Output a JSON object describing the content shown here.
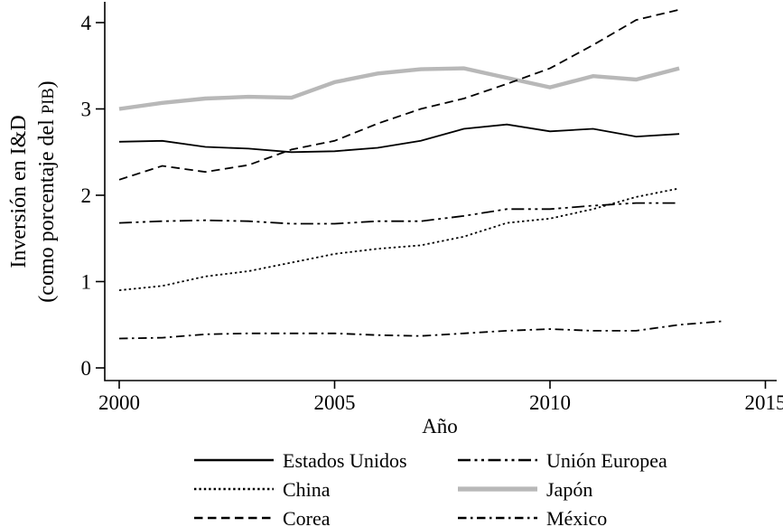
{
  "chart_data": {
    "type": "line",
    "title": "",
    "xlabel": "Año",
    "ylabel": "Inversión en I&D (como porcentaje del PIB)",
    "ylabel_lines": {
      "line1": "Inversión en I&D",
      "line2_pre": "(como porcentaje del ",
      "line2_smallcaps": "PIB",
      "line2_post": ")"
    },
    "x_ticks": [
      "2000",
      "2005",
      "2010",
      "2015"
    ],
    "y_ticks": [
      "0",
      "1",
      "2",
      "3",
      "4"
    ],
    "xlim": [
      1999.7,
      2015.3
    ],
    "ylim": [
      0,
      4.35
    ],
    "grid": false,
    "legend_position": "bottom, two columns",
    "background_color": "#ffffff",
    "axis_color": "#000000",
    "series": [
      {
        "name": "Estados Unidos",
        "key": "estados-unidos",
        "line_style": "solid",
        "color": "#000000",
        "width": 1.8,
        "dash": "",
        "years": [
          2000,
          2001,
          2002,
          2003,
          2004,
          2005,
          2006,
          2007,
          2008,
          2009,
          2010,
          2011,
          2012,
          2013
        ],
        "values": [
          2.62,
          2.63,
          2.56,
          2.54,
          2.5,
          2.51,
          2.55,
          2.63,
          2.77,
          2.82,
          2.74,
          2.77,
          2.68,
          2.71
        ]
      },
      {
        "name": "China",
        "key": "china",
        "line_style": "dotted",
        "color": "#000000",
        "width": 1.8,
        "dash": "2.4 3",
        "years": [
          2000,
          2001,
          2002,
          2003,
          2004,
          2005,
          2006,
          2007,
          2008,
          2009,
          2010,
          2011,
          2012,
          2013
        ],
        "values": [
          0.9,
          0.95,
          1.06,
          1.12,
          1.22,
          1.32,
          1.38,
          1.42,
          1.52,
          1.68,
          1.73,
          1.84,
          1.98,
          2.08
        ]
      },
      {
        "name": "Corea",
        "key": "corea",
        "line_style": "dashed",
        "color": "#000000",
        "width": 1.8,
        "dash": "9.5 5.5",
        "years": [
          2000,
          2001,
          2002,
          2003,
          2004,
          2005,
          2006,
          2007,
          2008,
          2009,
          2010,
          2011,
          2012,
          2013
        ],
        "values": [
          2.18,
          2.34,
          2.27,
          2.35,
          2.53,
          2.63,
          2.83,
          3.0,
          3.12,
          3.29,
          3.47,
          3.74,
          4.03,
          4.15
        ]
      },
      {
        "name": "Unión Europea",
        "key": "union-europea",
        "line_style": "long-dash dot dot",
        "color": "#000000",
        "width": 1.8,
        "dash": "14 4.5 3 4.5 3 4.5",
        "years": [
          2000,
          2001,
          2002,
          2003,
          2004,
          2005,
          2006,
          2007,
          2008,
          2009,
          2010,
          2011,
          2012,
          2013
        ],
        "values": [
          1.68,
          1.7,
          1.71,
          1.7,
          1.67,
          1.67,
          1.7,
          1.7,
          1.76,
          1.84,
          1.84,
          1.88,
          1.91,
          1.91
        ]
      },
      {
        "name": "Japón",
        "key": "japon",
        "line_style": "thick solid",
        "color": "#b8b8b8",
        "width": 4.4,
        "dash": "",
        "years": [
          2000,
          2001,
          2002,
          2003,
          2004,
          2005,
          2006,
          2007,
          2008,
          2009,
          2010,
          2011,
          2012,
          2013
        ],
        "values": [
          3.0,
          3.07,
          3.12,
          3.14,
          3.13,
          3.31,
          3.41,
          3.46,
          3.47,
          3.36,
          3.25,
          3.38,
          3.34,
          3.47
        ]
      },
      {
        "name": "México",
        "key": "mexico",
        "line_style": "dash-dot",
        "color": "#000000",
        "width": 1.8,
        "dash": "9.5 4.5 2.5 4.5",
        "years": [
          2000,
          2001,
          2002,
          2003,
          2004,
          2005,
          2006,
          2007,
          2008,
          2009,
          2010,
          2011,
          2012,
          2013,
          2014
        ],
        "values": [
          0.34,
          0.35,
          0.39,
          0.4,
          0.4,
          0.4,
          0.38,
          0.37,
          0.4,
          0.43,
          0.45,
          0.43,
          0.43,
          0.5,
          0.54
        ]
      }
    ]
  }
}
